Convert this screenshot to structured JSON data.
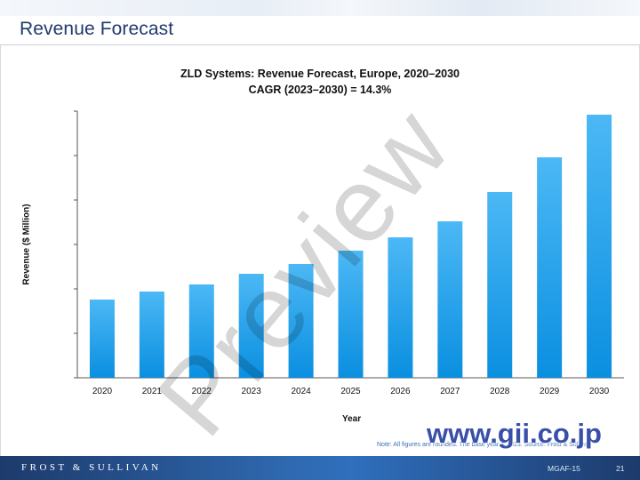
{
  "page": {
    "title": "Revenue Forecast",
    "note": "Note: All figures are rounded. The base year is 2023. Source: Frost & Sullivan",
    "footer": {
      "brand": "FROST & SULLIVAN",
      "code": "MGAF-15",
      "page_number": "21"
    },
    "watermark": "Preview",
    "site_mark": "www.gii.co.jp"
  },
  "chart_data": {
    "type": "bar",
    "title": "ZLD Systems: Revenue Forecast, Europe, 2020–2030",
    "subtitle": "CAGR (2023–2030) = 14.3%",
    "xlabel": "Year",
    "ylabel": "Revenue ($ Million)",
    "categories": [
      "2020",
      "2021",
      "2022",
      "2023",
      "2024",
      "2025",
      "2026",
      "2027",
      "2028",
      "2029",
      "2030"
    ],
    "values": [
      88,
      97,
      105,
      117,
      128,
      143,
      158,
      176,
      209,
      248,
      296
    ],
    "ylim": [
      0,
      300
    ],
    "y_tick_labels_shown": false,
    "grid": false,
    "bar_color_top": "#4cb8f5",
    "bar_color_bottom": "#0a8fe0"
  }
}
